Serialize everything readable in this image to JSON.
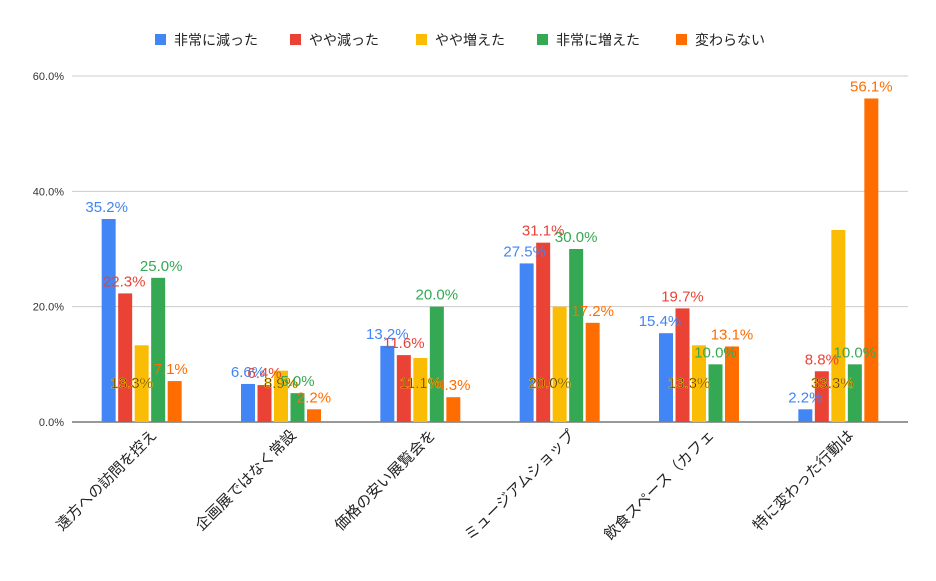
{
  "chart_data": {
    "type": "bar",
    "categories": [
      "遠方への訪問を控え",
      "企画展ではなく常設",
      "価格の安い展覧会を",
      "ミュージアムショップ",
      "飲食スペース（カフェ",
      "特に変わった行動は"
    ],
    "series": [
      {
        "name": "非常に減った",
        "color": "#4285f4",
        "values": [
          35.2,
          6.6,
          13.2,
          27.5,
          15.4,
          2.2
        ],
        "labels": [
          "35.2%",
          "6.6%",
          "13.2%",
          "27.5%",
          "15.4%",
          "2.2%"
        ]
      },
      {
        "name": "やや減った",
        "color": "#ea4335",
        "values": [
          22.3,
          6.4,
          11.6,
          31.1,
          19.7,
          8.8
        ],
        "labels": [
          "22.3%",
          "6.4%",
          "11.6%",
          "31.1%",
          "19.7%",
          "8.8%"
        ]
      },
      {
        "name": "やや増えた",
        "color": "#fbbc04",
        "values": [
          13.3,
          8.9,
          11.1,
          20.0,
          13.3,
          33.3
        ],
        "labels": [
          "13.3%",
          "8.9%",
          "11.1%",
          "20.0%",
          "13.3%",
          "33.3%"
        ]
      },
      {
        "name": "非常に増えた",
        "color": "#34a853",
        "values": [
          25.0,
          5.0,
          20.0,
          30.0,
          10.0,
          10.0
        ],
        "labels": [
          "25.0%",
          "5.0%",
          "20.0%",
          "30.0%",
          "10.0%",
          "10.0%"
        ]
      },
      {
        "name": "変わらない",
        "color": "#ff6d01",
        "values": [
          7.1,
          2.2,
          4.3,
          17.2,
          13.1,
          56.1
        ],
        "labels": [
          "7.1%",
          "2.2%",
          "4.3%",
          "17.2%",
          "13.1%",
          "56.1%"
        ]
      }
    ],
    "y_ticks": [
      "0.0%",
      "20.0%",
      "40.0%",
      "60.0%"
    ],
    "ylim": [
      0,
      60
    ],
    "grid": true,
    "legend": "top"
  }
}
